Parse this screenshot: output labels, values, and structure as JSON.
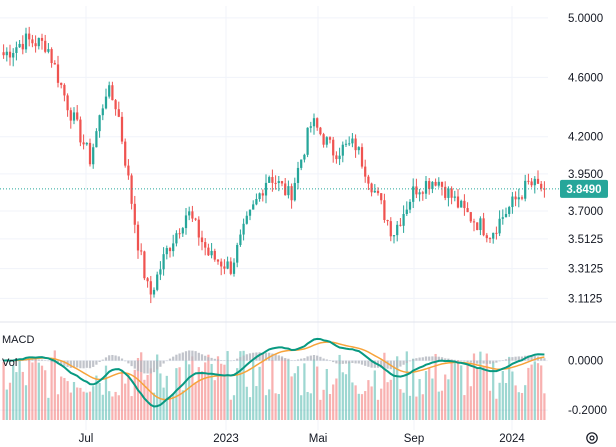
{
  "chart_data": {
    "type": "candlestick",
    "price_axis": {
      "ticks": [
        5.0,
        4.6,
        4.2,
        3.95,
        3.7,
        3.5125,
        3.3125,
        3.1125
      ],
      "tick_labels": [
        "5.0000",
        "4.6000",
        "4.2000",
        "3.9500",
        "3.7000",
        "3.5125",
        "3.3125",
        "3.1125"
      ],
      "range": [
        2.98,
        5.08
      ]
    },
    "last_price": {
      "value": 3.849,
      "label": "3.8490",
      "color": "#26a69a"
    },
    "x_axis": {
      "labels": [
        {
          "text": "Jul",
          "date": "2022-07"
        },
        {
          "text": "2023",
          "date": "2023-01"
        },
        {
          "text": "Mai",
          "date": "2023-05"
        },
        {
          "text": "Sep",
          "date": "2023-09"
        },
        {
          "text": "2024",
          "date": "2024-01"
        }
      ]
    },
    "series": [
      {
        "name": "Price",
        "kind": "candles",
        "up_color": "#26a69a",
        "down_color": "#ef5350",
        "close_path": [
          [
            0,
            4.75
          ],
          [
            4,
            4.85
          ],
          [
            8,
            4.82
          ],
          [
            12,
            4.4
          ],
          [
            16,
            4.05
          ],
          [
            19,
            4.52
          ],
          [
            21,
            4.4
          ],
          [
            25,
            3.45
          ],
          [
            27,
            3.12
          ],
          [
            30,
            3.42
          ],
          [
            34,
            3.7
          ],
          [
            38,
            3.4
          ],
          [
            42,
            3.32
          ],
          [
            45,
            3.62
          ],
          [
            49,
            3.95
          ],
          [
            53,
            3.8
          ],
          [
            57,
            4.3
          ],
          [
            61,
            4.1
          ],
          [
            65,
            4.15
          ],
          [
            69,
            3.8
          ],
          [
            72,
            3.55
          ],
          [
            76,
            3.85
          ],
          [
            80,
            3.92
          ],
          [
            85,
            3.7
          ],
          [
            90,
            3.55
          ],
          [
            93,
            3.7
          ],
          [
            97,
            3.88
          ],
          [
            100,
            3.85
          ]
        ]
      },
      {
        "name": "Vol",
        "kind": "volume"
      }
    ],
    "indicators": {
      "macd": {
        "label": "MACD",
        "line_color": "#089981",
        "signal_color": "#f7a33a",
        "hist_color": "#b2b5be",
        "ticks": [
          0.0,
          -0.2
        ],
        "tick_labels": [
          "0.0000",
          "-0.2000"
        ],
        "range": [
          -0.24,
          0.14
        ]
      },
      "volume": {
        "label": "Vol"
      }
    },
    "grid": true
  },
  "settings": {
    "icon": "gear-icon"
  }
}
